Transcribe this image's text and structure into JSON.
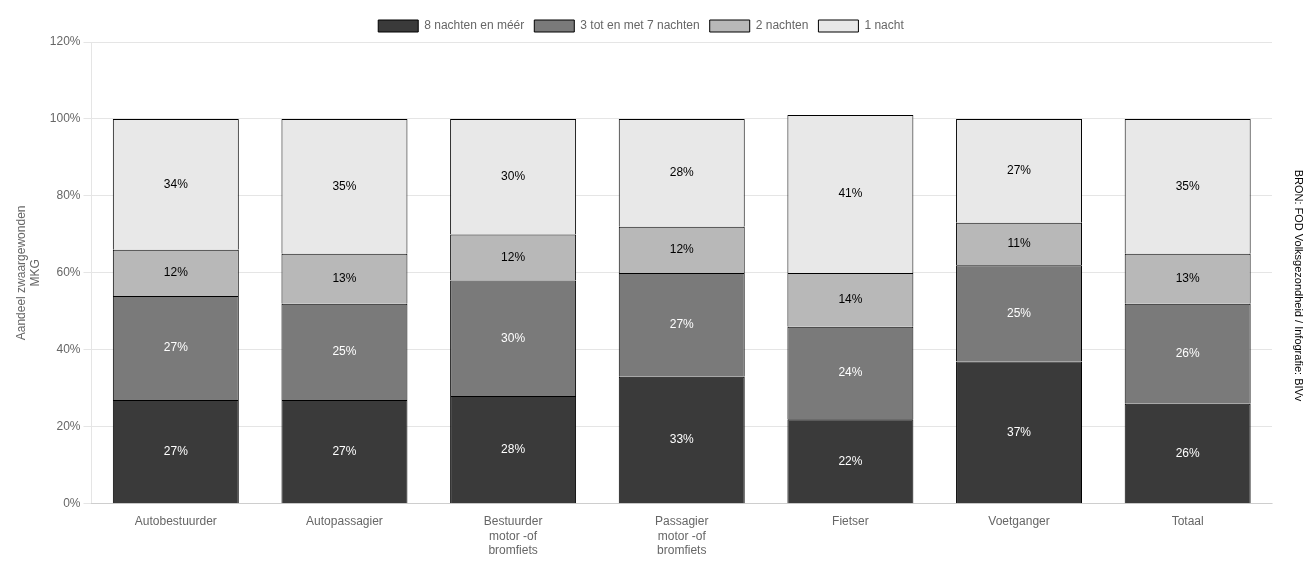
{
  "chart_data": {
    "type": "bar",
    "stacked": true,
    "data_labels": true,
    "grid": true,
    "legend": "top",
    "ylabel": "Aandeel zwaargewonden\nMKG",
    "annotations": [
      "BRON: FOD Volksgezondheid / Infografie: BIVv"
    ],
    "categories": [
      "Autobestuurder",
      "Autopassagier",
      "Bestuurder\nmotor -of\nbromfiets",
      "Passagier\nmotor -of\nbromfiets",
      "Fietser",
      "Voetganger",
      "Totaal"
    ],
    "series": [
      {
        "name": "8 nachten en méér",
        "color": "#3a3a3a",
        "values": [
          27,
          27,
          28,
          33,
          22,
          37,
          26
        ],
        "value_labels": [
          "27%",
          "27%",
          "28%",
          "33%",
          "22%",
          "37%",
          "26%"
        ]
      },
      {
        "name": "3 tot en met 7 nachten",
        "color": "#7a7a7a",
        "values": [
          27,
          25,
          30,
          27,
          24,
          25,
          26
        ],
        "value_labels": [
          "27%",
          "25%",
          "30%",
          "27%",
          "24%",
          "25%",
          "26%"
        ]
      },
      {
        "name": "2 nachten",
        "color": "#b8b8b8",
        "values": [
          12,
          13,
          12,
          12,
          14,
          11,
          13
        ],
        "value_labels": [
          "12%",
          "13%",
          "12%",
          "12%",
          "14%",
          "11%",
          "13%"
        ]
      },
      {
        "name": "1 nacht",
        "color": "#e8e8e8",
        "values": [
          34,
          35,
          30,
          28,
          41,
          27,
          35
        ],
        "value_labels": [
          "34%",
          "35%",
          "30%",
          "28%",
          "41%",
          "27%",
          "35%"
        ]
      }
    ],
    "ylim": [
      0,
      120
    ],
    "yticks": [
      {
        "value": 0,
        "label": "0%"
      },
      {
        "value": 20,
        "label": "20%"
      },
      {
        "value": 40,
        "label": "40%"
      },
      {
        "value": 60,
        "label": "60%"
      },
      {
        "value": 80,
        "label": "80%"
      },
      {
        "value": 100,
        "label": "100%"
      },
      {
        "value": 120,
        "label": "120%"
      }
    ]
  }
}
